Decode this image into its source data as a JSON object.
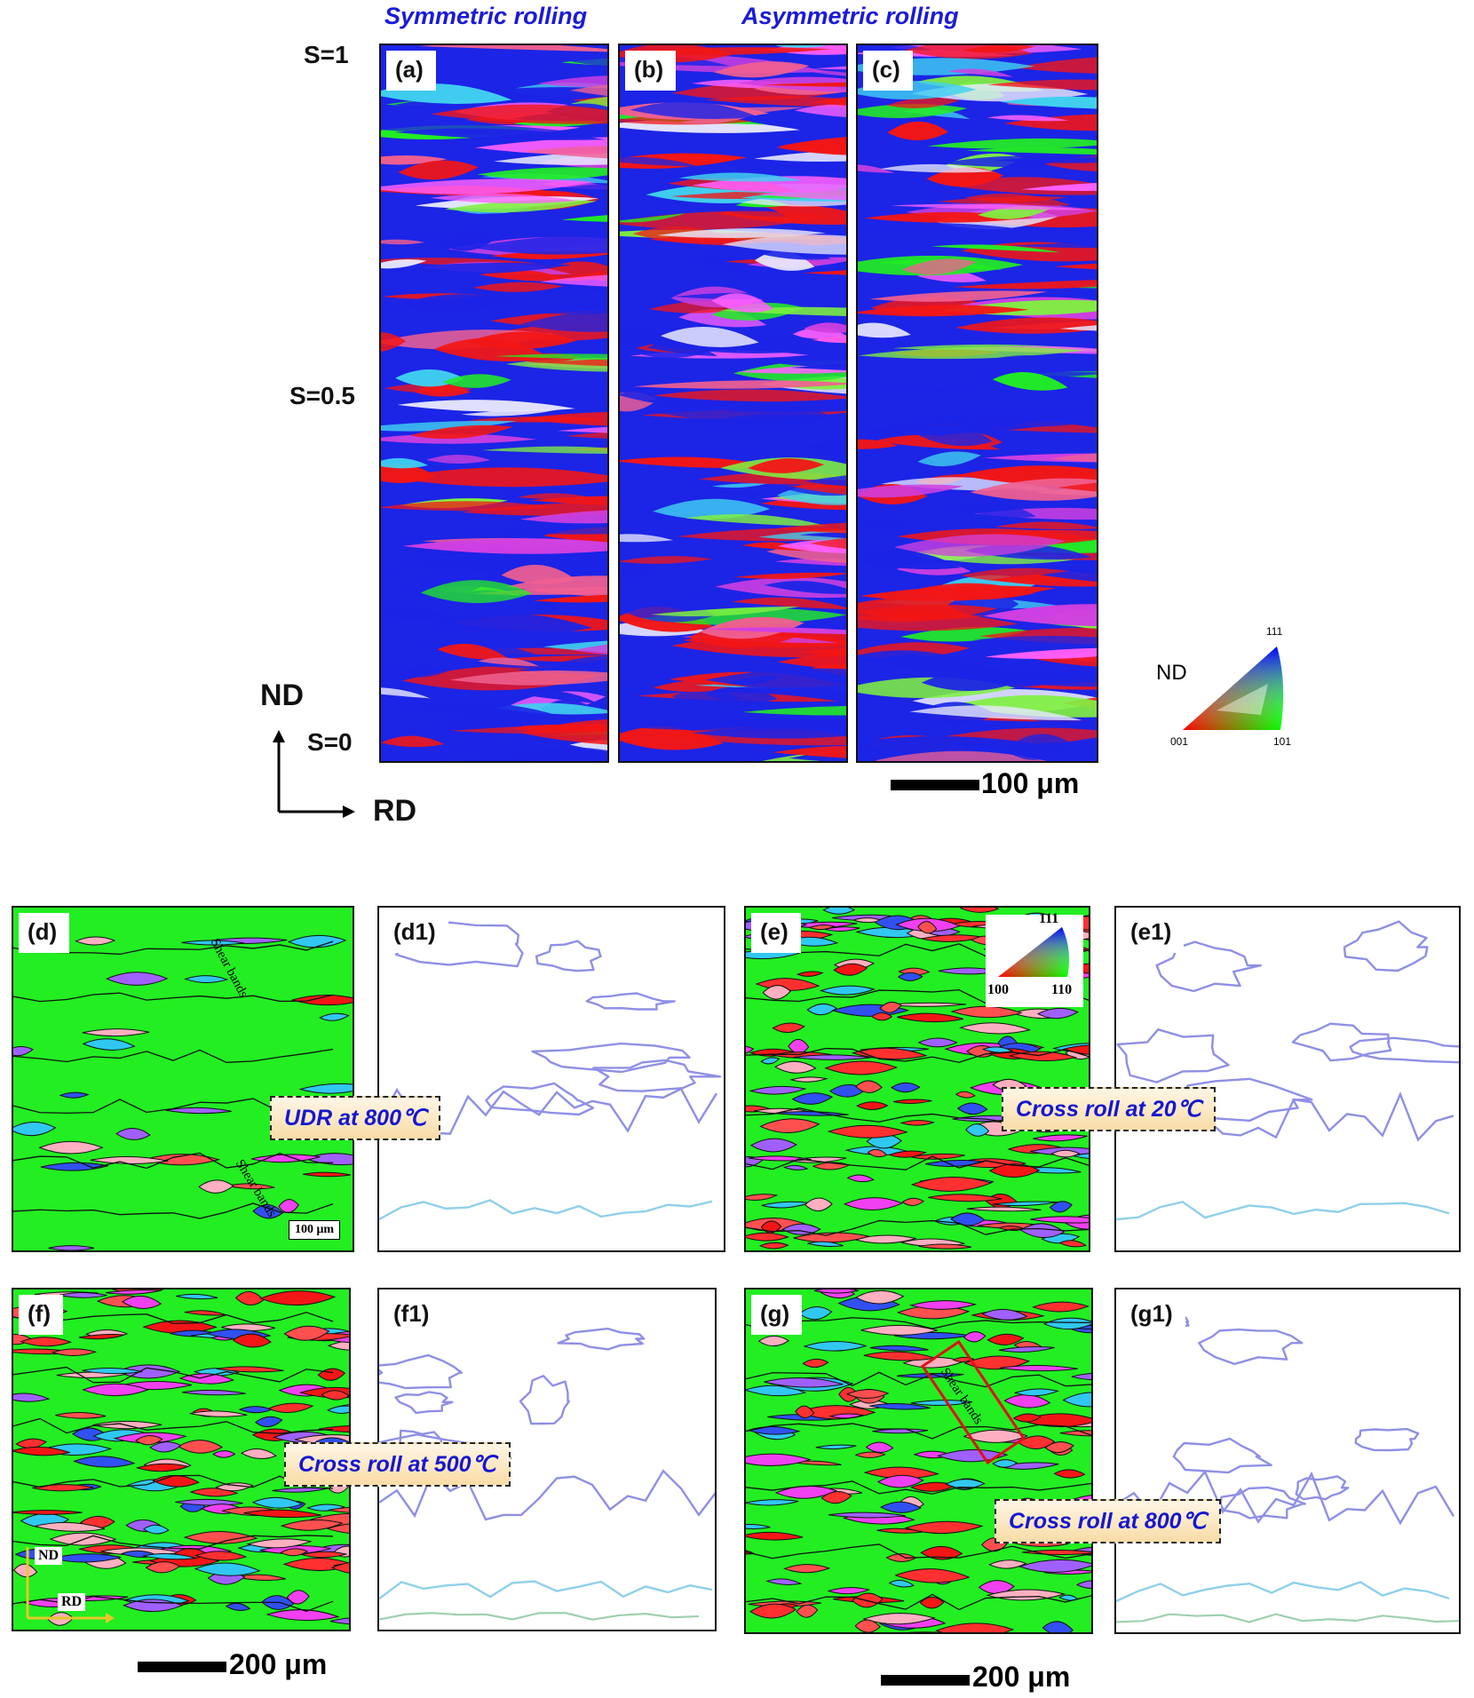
{
  "headers": {
    "symmetric": "Symmetric rolling",
    "asymmetric": "Asymmetric rolling"
  },
  "s_labels": {
    "top": "S=1",
    "mid": "S=0.5",
    "bottom": "S=0"
  },
  "axes_top": {
    "nd": "ND",
    "rd": "RD"
  },
  "legend_top": {
    "nd": "ND",
    "v111": "111",
    "v001": "001",
    "v101": "101"
  },
  "scale_top": "100 μm",
  "panels": {
    "a": "(a)",
    "b": "(b)",
    "c": "(c)",
    "d": "(d)",
    "d1": "(d1)",
    "e": "(e)",
    "e1": "(e1)",
    "f": "(f)",
    "f1": "(f1)",
    "g": "(g)",
    "g1": "(g1)"
  },
  "callouts": {
    "d": "UDR at 800℃",
    "e": "Cross roll at 20℃",
    "f": "Cross roll at 500℃",
    "g": "Cross roll at 800℃"
  },
  "annotations": {
    "shear": "Shear bands",
    "d_scale": "100 μm",
    "e_legend_111": "111",
    "e_legend_100": "100",
    "e_legend_110": "110",
    "f_nd": "ND",
    "f_rd": "RD"
  },
  "scale_bottom_left": "200 μm",
  "scale_bottom_right": "200 μm",
  "colors": {
    "red": "#f21616",
    "blue": "#1c24e6",
    "green": "#22ee22",
    "contour_blue": "#8f8fe6",
    "contour_cyan": "#8fd0ea"
  }
}
